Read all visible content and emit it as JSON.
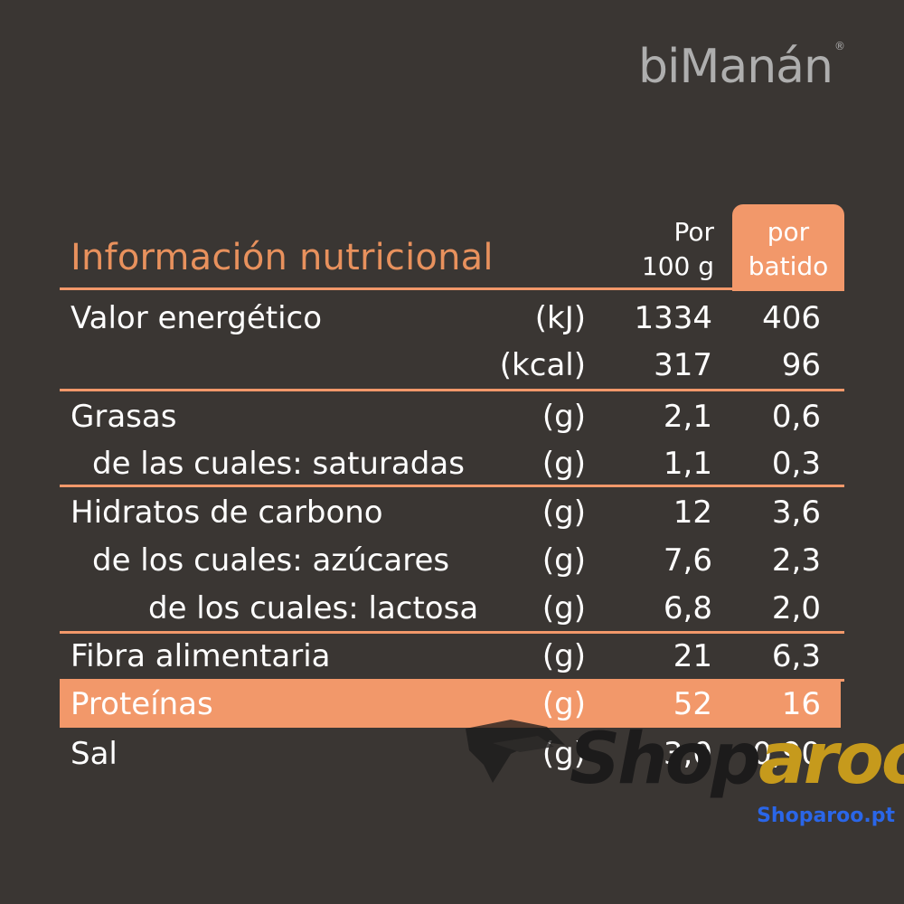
{
  "brand": "biManán",
  "title": "Información nutricional",
  "columns": {
    "per100": [
      "Por",
      "100 g"
    ],
    "perShake": [
      "por",
      "batido"
    ]
  },
  "rows": [
    {
      "label": "Valor energético",
      "unit": "(kJ)",
      "v1": "1334",
      "v2": "406"
    },
    {
      "label": "",
      "unit": "(kcal)",
      "v1": "317",
      "v2": "96"
    },
    {
      "label": "Grasas",
      "unit": "(g)",
      "v1": "2,1",
      "v2": "0,6"
    },
    {
      "label": "de las cuales: saturadas",
      "unit": "(g)",
      "v1": "1,1",
      "v2": "0,3"
    },
    {
      "label": "Hidratos de carbono",
      "unit": "(g)",
      "v1": "12",
      "v2": "3,6"
    },
    {
      "label": "de los cuales: azúcares",
      "unit": "(g)",
      "v1": "7,6",
      "v2": "2,3"
    },
    {
      "label": "de los cuales: lactosa",
      "unit": "(g)",
      "v1": "6,8",
      "v2": "2,0"
    },
    {
      "label": "Fibra alimentaria",
      "unit": "(g)",
      "v1": "21",
      "v2": "6,3"
    },
    {
      "label": "Proteínas",
      "unit": "(g)",
      "v1": "52",
      "v2": "16"
    },
    {
      "label": "Sal",
      "unit": "(g)",
      "v1": "3,0",
      "v2": "0,90"
    }
  ],
  "watermark": {
    "text_a": "Shop",
    "text_b": "aroo",
    "url": "Shoparoo.pt"
  },
  "colors": {
    "background": "#3a3633",
    "accent": "#f2986a",
    "title": "#e8915d"
  }
}
